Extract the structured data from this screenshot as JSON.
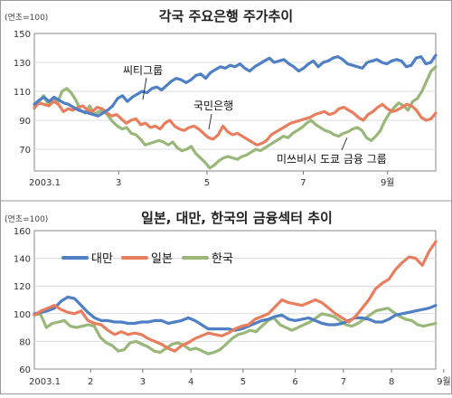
{
  "chart_data": [
    {
      "type": "line",
      "title": "각국 주요은행 주가추이",
      "unit_label": "(연초=100)",
      "ylim": [
        55,
        150
      ],
      "y_ticks": [
        "150",
        "130",
        "110",
        "90",
        "70"
      ],
      "y_tick_values": [
        150,
        130,
        110,
        90,
        70
      ],
      "x_tick_labels": [
        "2003.1",
        "3",
        "5",
        "7",
        "9월"
      ],
      "series": [
        {
          "name": "씨티그룹",
          "color": "#4f7fc4",
          "values": [
            101,
            104,
            106,
            103,
            106,
            104,
            102,
            101,
            99,
            97,
            96,
            95,
            94,
            93,
            95,
            97,
            100,
            105,
            107,
            103,
            106,
            108,
            110,
            109,
            112,
            113,
            111,
            114,
            117,
            119,
            118,
            116,
            118,
            121,
            122,
            119,
            123,
            125,
            127,
            126,
            128,
            127,
            129,
            126,
            124,
            127,
            129,
            131,
            133,
            130,
            131,
            132,
            129,
            127,
            124,
            126,
            129,
            131,
            127,
            130,
            131,
            133,
            134,
            132,
            129,
            128,
            127,
            126,
            130,
            131,
            132,
            130,
            129,
            131,
            132,
            131,
            127,
            128,
            133,
            134,
            129,
            130,
            135
          ]
        },
        {
          "name": "국민은행",
          "color": "#e97e5e",
          "values": [
            99,
            102,
            101,
            100,
            103,
            101,
            96,
            98,
            97,
            99,
            100,
            97,
            96,
            99,
            98,
            95,
            93,
            94,
            91,
            88,
            90,
            91,
            87,
            88,
            85,
            86,
            84,
            88,
            90,
            86,
            84,
            83,
            85,
            86,
            84,
            81,
            78,
            77,
            80,
            86,
            82,
            80,
            81,
            79,
            77,
            75,
            73,
            74,
            76,
            80,
            82,
            84,
            86,
            88,
            89,
            90,
            91,
            92,
            94,
            95,
            96,
            94,
            95,
            98,
            99,
            97,
            95,
            92,
            90,
            94,
            96,
            99,
            101,
            98,
            96,
            97,
            99,
            101,
            100,
            97,
            92,
            90,
            91,
            95
          ]
        },
        {
          "name": "미쓰비시 도쿄 금융 그룹",
          "color": "#98b779",
          "values": [
            98,
            103,
            107,
            101,
            105,
            102,
            110,
            112,
            109,
            104,
            97,
            95,
            100,
            94,
            96,
            97,
            93,
            89,
            86,
            84,
            85,
            81,
            80,
            77,
            73,
            74,
            75,
            76,
            75,
            73,
            75,
            71,
            69,
            70,
            72,
            67,
            64,
            61,
            57,
            59,
            62,
            64,
            65,
            64,
            63,
            65,
            66,
            68,
            70,
            69,
            71,
            73,
            75,
            77,
            79,
            78,
            81,
            83,
            85,
            88,
            90,
            87,
            85,
            83,
            82,
            80,
            79,
            81,
            82,
            84,
            85,
            83,
            78,
            76,
            79,
            83,
            90,
            95,
            99,
            102,
            100,
            97,
            103,
            105,
            110,
            117,
            124,
            127
          ]
        }
      ],
      "annotations": [
        "씨티그룹",
        "국민은행",
        "미쓰비시 도쿄 금융 그룹"
      ]
    },
    {
      "type": "line",
      "title": "일본, 대만, 한국의 금융섹터 추이",
      "unit_label": "(연초=100)",
      "ylim": [
        60,
        160
      ],
      "y_ticks": [
        "160",
        "140",
        "120",
        "100",
        "80",
        "60"
      ],
      "y_tick_values": [
        160,
        140,
        120,
        100,
        80,
        60
      ],
      "x_tick_labels": [
        "2003.1",
        "2",
        "3",
        "4",
        "5",
        "6",
        "7",
        "8",
        "9월"
      ],
      "series": [
        {
          "name": "대만",
          "color": "#4f7fc4",
          "values": [
            100,
            101,
            102,
            104,
            109,
            112,
            111,
            106,
            101,
            97,
            95,
            95,
            94,
            94,
            93,
            93,
            94,
            94,
            95,
            95,
            93,
            94,
            95,
            97,
            95,
            92,
            89,
            89,
            89,
            89,
            88,
            89,
            91,
            93,
            95,
            96,
            98,
            99,
            96,
            95,
            96,
            97,
            95,
            93,
            92,
            92,
            93,
            95,
            97,
            97,
            96,
            94,
            94,
            96,
            99,
            100,
            101,
            102,
            103,
            104,
            106
          ]
        },
        {
          "name": "일본",
          "color": "#e97e5e",
          "values": [
            99,
            102,
            104,
            106,
            103,
            101,
            100,
            102,
            95,
            93,
            92,
            88,
            85,
            87,
            85,
            86,
            85,
            82,
            80,
            78,
            75,
            73,
            77,
            79,
            82,
            84,
            86,
            85,
            84,
            86,
            89,
            91,
            92,
            96,
            98,
            100,
            105,
            110,
            108,
            107,
            106,
            108,
            110,
            108,
            104,
            100,
            97,
            94,
            98,
            104,
            110,
            118,
            122,
            125,
            132,
            137,
            141,
            140,
            135,
            145,
            152
          ]
        },
        {
          "name": "한국",
          "color": "#98b779",
          "values": [
            99,
            100,
            90,
            93,
            94,
            95,
            91,
            90,
            91,
            92,
            91,
            83,
            79,
            77,
            73,
            74,
            79,
            80,
            78,
            76,
            73,
            72,
            75,
            78,
            79,
            77,
            74,
            75,
            73,
            71,
            72,
            74,
            78,
            82,
            85,
            86,
            88,
            87,
            91,
            95,
            97,
            92,
            90,
            88,
            90,
            92,
            94,
            97,
            100,
            99,
            98,
            95,
            92,
            91,
            93,
            96,
            99,
            102,
            103,
            104,
            101,
            98,
            96,
            95,
            92,
            91,
            92,
            93
          ]
        }
      ]
    }
  ]
}
